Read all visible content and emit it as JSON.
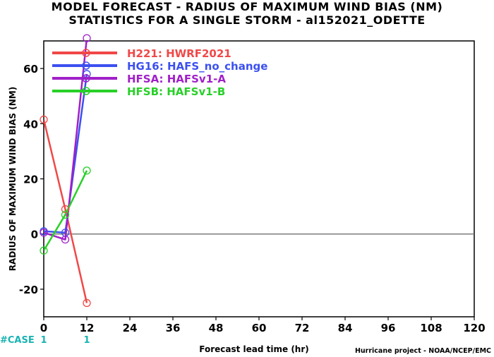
{
  "chart_data": {
    "type": "line",
    "title": "MODEL FORECAST - RADIUS OF MAXIMUM WIND BIAS (NM)",
    "subtitle": "STATISTICS FOR A SINGLE STORM - al152021_ODETTE",
    "xlabel": "Forecast lead time (hr)",
    "ylabel": "RADIUS OF MAXIMUM WIND BIAS (NM)",
    "xlim": [
      0,
      120
    ],
    "ylim": [
      -30,
      70
    ],
    "xticks": [
      0,
      12,
      24,
      36,
      48,
      60,
      72,
      84,
      96,
      108,
      120
    ],
    "yticks": [
      -20,
      0,
      20,
      40,
      60
    ],
    "grid": false,
    "legend_position": "top-left",
    "zero_line": true,
    "series": [
      {
        "name": "H221: HWRF2021",
        "color": "#f04848",
        "x": [
          0,
          6,
          12
        ],
        "y": [
          41.5,
          9,
          -25
        ]
      },
      {
        "name": "HG16: HAFS_no_change",
        "color": "#3c50f0",
        "x": [
          0,
          6,
          12
        ],
        "y": [
          1,
          0.5,
          58
        ]
      },
      {
        "name": "HFSA: HAFSv1-A",
        "color": "#a020c8",
        "x": [
          0,
          6,
          12
        ],
        "y": [
          0.5,
          -2,
          71
        ]
      },
      {
        "name": "HFSB: HAFSv1-B",
        "color": "#28d028",
        "x": [
          0,
          6,
          12
        ],
        "y": [
          -6,
          7,
          23
        ]
      }
    ],
    "case_counts": {
      "label": "#CASE",
      "label_color": "#1ab3b3",
      "entries": [
        {
          "x": 0,
          "count": "1"
        },
        {
          "x": 12,
          "count": "1"
        }
      ]
    }
  },
  "footer": {
    "xlabel": "Forecast lead time (hr)",
    "credit": "Hurricane project - NOAA/NCEP/EMC"
  }
}
